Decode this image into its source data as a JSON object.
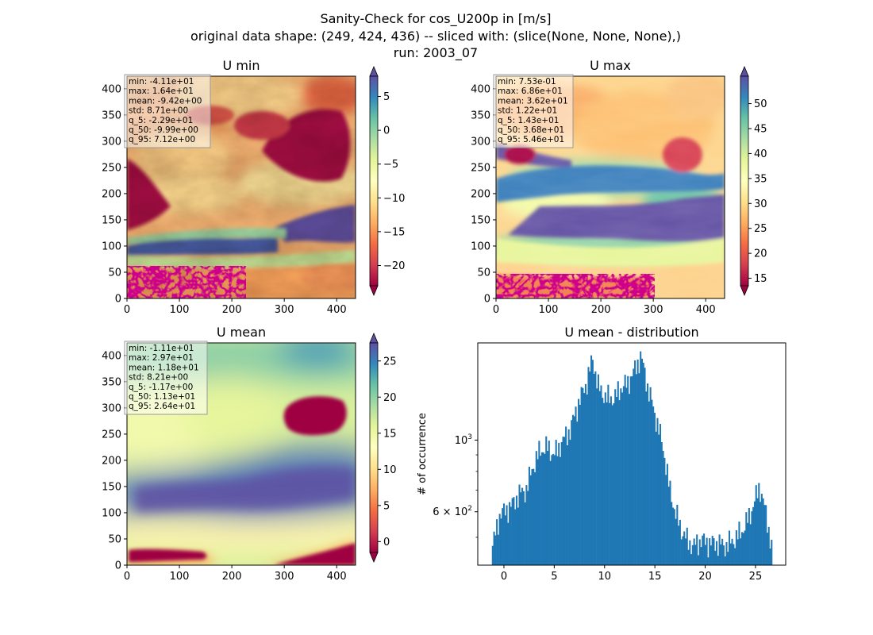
{
  "figure": {
    "title_lines": [
      "Sanity-Check for cos_U200p in [m/s]",
      "original data shape: (249, 424, 436) -- sliced with: (slice(None, None, None),)",
      "run: 2003_07"
    ]
  },
  "chart_data": [
    {
      "type": "heatmap",
      "title": "U min",
      "colormap": "Spectral",
      "xlim": [
        0,
        436
      ],
      "ylim": [
        0,
        424
      ],
      "x_ticks": [
        0,
        100,
        200,
        300,
        400
      ],
      "y_ticks": [
        0,
        50,
        100,
        150,
        200,
        250,
        300,
        350,
        400
      ],
      "colorbar": {
        "range": [
          -23,
          8
        ],
        "ticks": [
          5,
          0,
          -5,
          -10,
          -15,
          -20
        ],
        "tick_labels": [
          "5",
          "0",
          "−5",
          "−10",
          "−15",
          "−20"
        ],
        "extend": "both"
      },
      "stats": [
        "min: -4.11e+01",
        "max: 1.64e+01",
        "mean: -9.42e+00",
        "std: 8.71e+00",
        "q_5: -2.29e+01",
        "q_50: -9.99e+00",
        "q_95: 7.12e+00"
      ]
    },
    {
      "type": "heatmap",
      "title": "U max",
      "colormap": "Spectral",
      "xlim": [
        0,
        436
      ],
      "ylim": [
        0,
        424
      ],
      "x_ticks": [
        0,
        100,
        200,
        300,
        400
      ],
      "y_ticks": [
        0,
        50,
        100,
        150,
        200,
        250,
        300,
        350,
        400
      ],
      "colorbar": {
        "range": [
          13.5,
          55.5
        ],
        "ticks": [
          50,
          45,
          40,
          35,
          30,
          25,
          20,
          15
        ],
        "tick_labels": [
          "50",
          "45",
          "40",
          "35",
          "30",
          "25",
          "20",
          "15"
        ],
        "extend": "both"
      },
      "stats": [
        "min: 7.53e-01",
        "max: 6.86e+01",
        "mean: 3.62e+01",
        "std: 1.22e+01",
        "q_5: 1.43e+01",
        "q_50: 3.68e+01",
        "q_95: 5.46e+01"
      ]
    },
    {
      "type": "heatmap",
      "title": "U mean",
      "colormap": "Spectral",
      "xlim": [
        0,
        436
      ],
      "ylim": [
        0,
        424
      ],
      "x_ticks": [
        0,
        100,
        200,
        300,
        400
      ],
      "y_ticks": [
        0,
        50,
        100,
        150,
        200,
        250,
        300,
        350,
        400
      ],
      "colorbar": {
        "range": [
          -1.5,
          27.5
        ],
        "ticks": [
          25,
          20,
          15,
          10,
          5,
          0
        ],
        "tick_labels": [
          "25",
          "20",
          "15",
          "10",
          "5",
          "0"
        ],
        "extend": "both"
      },
      "stats": [
        "min: -1.11e+01",
        "max: 2.97e+01",
        "mean: 1.18e+01",
        "std: 8.21e+00",
        "q_5: -1.17e+00",
        "q_50: 1.13e+01",
        "q_95: 2.64e+01"
      ]
    },
    {
      "type": "bar",
      "title": "U mean - distribution",
      "ylabel": "# of occurrence",
      "y_scale": "log",
      "xlim": [
        -2.6,
        28
      ],
      "ylim": [
        410,
        2000
      ],
      "x_ticks": [
        0,
        5,
        10,
        15,
        20,
        25
      ],
      "y_tick_labels": [
        {
          "value": 1000,
          "base": "10",
          "exp": "3"
        },
        {
          "value": 600,
          "base": "6 × 10",
          "exp": "2"
        }
      ],
      "y_minor_ticks": [
        500,
        700,
        800,
        900
      ],
      "bar_color": "#1f77b4",
      "bin_start": -1.2,
      "bin_width": 0.14,
      "envelope": [
        [
          -1.2,
          460
        ],
        [
          -0.8,
          520
        ],
        [
          -0.4,
          590
        ],
        [
          0.0,
          600
        ],
        [
          0.8,
          630
        ],
        [
          1.5,
          680
        ],
        [
          2.2,
          700
        ],
        [
          2.9,
          830
        ],
        [
          3.6,
          930
        ],
        [
          4.3,
          950
        ],
        [
          5.0,
          900
        ],
        [
          5.8,
          990
        ],
        [
          6.6,
          1080
        ],
        [
          7.4,
          1300
        ],
        [
          8.2,
          1500
        ],
        [
          8.8,
          1780
        ],
        [
          9.4,
          1450
        ],
        [
          10.2,
          1350
        ],
        [
          11.0,
          1350
        ],
        [
          11.6,
          1450
        ],
        [
          12.3,
          1500
        ],
        [
          13.0,
          1650
        ],
        [
          13.6,
          1820
        ],
        [
          14.3,
          1450
        ],
        [
          15.0,
          1200
        ],
        [
          15.8,
          950
        ],
        [
          16.4,
          720
        ],
        [
          17.0,
          600
        ],
        [
          17.6,
          530
        ],
        [
          18.2,
          490
        ],
        [
          18.8,
          470
        ],
        [
          19.6,
          490
        ],
        [
          20.4,
          480
        ],
        [
          21.2,
          480
        ],
        [
          22.0,
          470
        ],
        [
          22.8,
          490
        ],
        [
          23.6,
          520
        ],
        [
          24.4,
          580
        ],
        [
          25.0,
          660
        ],
        [
          25.4,
          720
        ],
        [
          25.8,
          640
        ],
        [
          26.2,
          550
        ],
        [
          26.6,
          470
        ]
      ]
    }
  ]
}
